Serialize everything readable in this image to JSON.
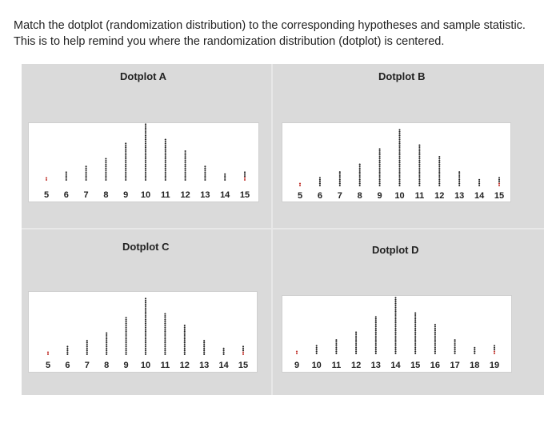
{
  "question": {
    "line1": "Match the dotplot (randomization distribution) to the corresponding hypotheses and sample statistic.",
    "line2": "This is to help remind you where the randomization distribution (dotplot) is centered."
  },
  "chart_data": [
    {
      "type": "scatter",
      "title": "Dotplot A",
      "x_ticks": [
        5,
        6,
        7,
        8,
        9,
        10,
        11,
        12,
        13,
        14,
        15
      ],
      "x": [
        5,
        6,
        7,
        8,
        9,
        10,
        11,
        12,
        13,
        14,
        15
      ],
      "counts": [
        2,
        5,
        8,
        12,
        20,
        30,
        22,
        16,
        8,
        4,
        5
      ]
    },
    {
      "type": "scatter",
      "title": "Dotplot B",
      "x_ticks": [
        5,
        6,
        7,
        8,
        9,
        10,
        11,
        12,
        13,
        14,
        15
      ],
      "x": [
        5,
        6,
        7,
        8,
        9,
        10,
        11,
        12,
        13,
        14,
        15
      ],
      "counts": [
        2,
        5,
        8,
        12,
        20,
        30,
        22,
        16,
        8,
        4,
        5
      ]
    },
    {
      "type": "scatter",
      "title": "Dotplot C",
      "x_ticks": [
        5,
        6,
        7,
        8,
        9,
        10,
        11,
        12,
        13,
        14,
        15
      ],
      "x": [
        5,
        6,
        7,
        8,
        9,
        10,
        11,
        12,
        13,
        14,
        15
      ],
      "counts": [
        2,
        5,
        8,
        12,
        20,
        30,
        22,
        16,
        8,
        4,
        5
      ]
    },
    {
      "type": "scatter",
      "title": "Dotplot D",
      "x_ticks": [
        9,
        10,
        11,
        12,
        13,
        14,
        15,
        16,
        17,
        18,
        19
      ],
      "x": [
        9,
        10,
        11,
        12,
        13,
        14,
        15,
        16,
        17,
        18,
        19
      ],
      "counts": [
        2,
        5,
        8,
        12,
        20,
        30,
        22,
        16,
        8,
        4,
        5
      ]
    }
  ]
}
